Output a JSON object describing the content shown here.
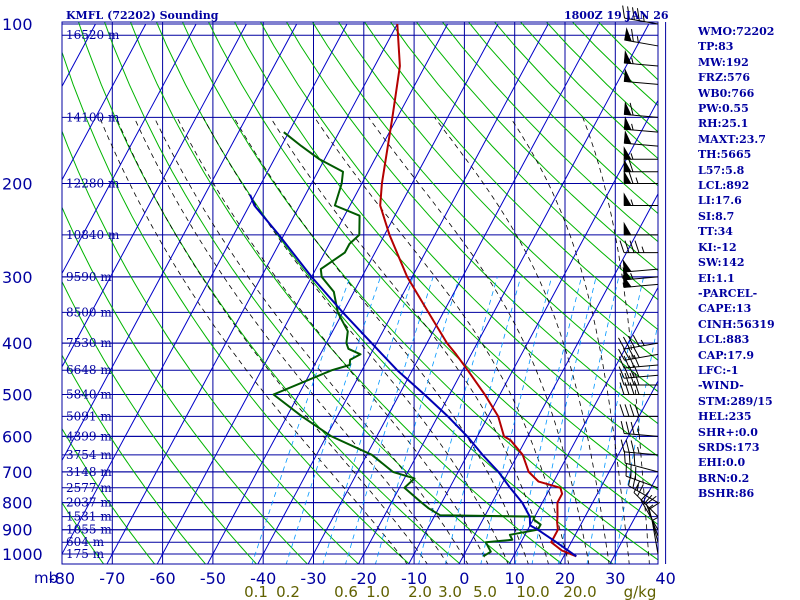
{
  "header": {
    "station": "KMFL (72202) Sounding",
    "valid_time": "1800Z 19 JAN 26"
  },
  "indices": [
    "WMO:72202",
    "TP:83",
    "MW:192",
    "FRZ:576",
    "WB0:766",
    "PW:0.55",
    "RH:25.1",
    "MAXT:23.7",
    "TH:5665",
    "L57:5.8",
    "LCL:892",
    "LI:17.6",
    "SI:8.7",
    "TT:34",
    "KI:-12",
    "SW:142",
    "EI:1.1",
    "-PARCEL-",
    "CAPE:13",
    "CINH:56319",
    "LCL:883",
    "CAP:17.9",
    "LFC:-1",
    "-WIND-",
    "STM:289/15",
    "HEL:235",
    "SHR+:0.0",
    "SRDS:173",
    "EHI:0.0",
    "BRN:0.2",
    "BSHR:86"
  ],
  "colors": {
    "frame": "#0000a0",
    "isotherm": "#0000c8",
    "dry_adiabat": "#00b400",
    "moist_adiabat": "#000000",
    "mixing_ratio": "#0096ff",
    "temperature": "#b40000",
    "dewpoint": "#005a00",
    "parcel": "#0000b4",
    "wind_barb": "#000000",
    "mixing_label": "#606000"
  },
  "chart_data": {
    "type": "skew-t",
    "pressure_axis_label": "mb",
    "pressure_levels": [
      100,
      200,
      300,
      400,
      500,
      600,
      700,
      800,
      900,
      1000
    ],
    "temperature_ticks": [
      -80,
      -70,
      -60,
      -50,
      -40,
      -30,
      -20,
      -10,
      0,
      10,
      20,
      30,
      40
    ],
    "temperature_tick_labels": [
      "-80",
      "-70",
      "-60",
      "-50",
      "-40",
      "-30",
      "-20",
      "-10",
      "0",
      "10",
      "20",
      "30",
      "40"
    ],
    "mixing_ratio_labels": [
      "0.1",
      "0.2",
      "0.6",
      "1.0",
      "2.0",
      "3.0",
      "5.0",
      "10.0",
      "20.0"
    ],
    "mixing_ratio_unit": "g/kg",
    "height_labels": [
      {
        "p": 105,
        "label": "16520 m"
      },
      {
        "p": 150,
        "label": "14100 m"
      },
      {
        "p": 200,
        "label": "12280 m"
      },
      {
        "p": 250,
        "label": "10840 m"
      },
      {
        "p": 300,
        "label": "9590 m"
      },
      {
        "p": 350,
        "label": "8500 m"
      },
      {
        "p": 400,
        "label": "7530 m"
      },
      {
        "p": 450,
        "label": "6648 m"
      },
      {
        "p": 500,
        "label": "5840 m"
      },
      {
        "p": 550,
        "label": "5091 m"
      },
      {
        "p": 600,
        "label": "4399 m"
      },
      {
        "p": 650,
        "label": "3754 m"
      },
      {
        "p": 700,
        "label": "3148 m"
      },
      {
        "p": 750,
        "label": "2577 m"
      },
      {
        "p": 800,
        "label": "2037 m"
      },
      {
        "p": 850,
        "label": "1531 m"
      },
      {
        "p": 900,
        "label": "1055 m"
      },
      {
        "p": 950,
        "label": "604 m"
      },
      {
        "p": 1000,
        "label": "175 m"
      }
    ],
    "series": [
      {
        "key": "temperature",
        "points": [
          [
            1010,
            22.5
          ],
          [
            985,
            19
          ],
          [
            950,
            16
          ],
          [
            925,
            16
          ],
          [
            900,
            16
          ],
          [
            870,
            15
          ],
          [
            850,
            14.5
          ],
          [
            800,
            13
          ],
          [
            770,
            13
          ],
          [
            750,
            12
          ],
          [
            730,
            7
          ],
          [
            700,
            4
          ],
          [
            650,
            1
          ],
          [
            610,
            -3
          ],
          [
            600,
            -4.7
          ],
          [
            550,
            -8
          ],
          [
            500,
            -13
          ],
          [
            450,
            -19
          ],
          [
            420,
            -23
          ],
          [
            400,
            -26
          ],
          [
            350,
            -33
          ],
          [
            300,
            -41
          ],
          [
            250,
            -49
          ],
          [
            220,
            -54
          ],
          [
            200,
            -56
          ],
          [
            150,
            -61
          ],
          [
            120,
            -65
          ],
          [
            100,
            -70
          ]
        ]
      },
      {
        "key": "dewpoint",
        "points": [
          [
            1010,
            4
          ],
          [
            990,
            5
          ],
          [
            970,
            4
          ],
          [
            950,
            3
          ],
          [
            940,
            8
          ],
          [
            920,
            7
          ],
          [
            900,
            12
          ],
          [
            880,
            12
          ],
          [
            860,
            10
          ],
          [
            850,
            10
          ],
          [
            845,
            -9
          ],
          [
            820,
            -12
          ],
          [
            800,
            -14
          ],
          [
            750,
            -19
          ],
          [
            720,
            -18
          ],
          [
            700,
            -23
          ],
          [
            650,
            -29
          ],
          [
            600,
            -39
          ],
          [
            550,
            -47
          ],
          [
            500,
            -55
          ],
          [
            450,
            -46
          ],
          [
            440,
            -43
          ],
          [
            430,
            -43.5
          ],
          [
            420,
            -42
          ],
          [
            410,
            -45
          ],
          [
            400,
            -46
          ],
          [
            380,
            -47
          ],
          [
            350,
            -51
          ],
          [
            320,
            -54
          ],
          [
            300,
            -58
          ],
          [
            290,
            -59
          ],
          [
            270,
            -56
          ],
          [
            260,
            -56
          ],
          [
            250,
            -55
          ],
          [
            230,
            -57
          ],
          [
            220,
            -63
          ],
          [
            200,
            -64
          ],
          [
            190,
            -65
          ],
          [
            180,
            -71
          ],
          [
            170,
            -76
          ],
          [
            160,
            -81
          ]
        ]
      },
      {
        "key": "parcel",
        "points": [
          [
            1010,
            22.5
          ],
          [
            950,
            17
          ],
          [
            900,
            12
          ],
          [
            883,
            10
          ],
          [
            850,
            9
          ],
          [
            800,
            6
          ],
          [
            750,
            2
          ],
          [
            700,
            -2
          ],
          [
            650,
            -7
          ],
          [
            600,
            -12
          ],
          [
            550,
            -18
          ],
          [
            500,
            -25
          ],
          [
            450,
            -33
          ],
          [
            400,
            -41
          ],
          [
            350,
            -50
          ],
          [
            300,
            -60
          ],
          [
            250,
            -71
          ],
          [
            220,
            -79
          ],
          [
            210,
            -81
          ]
        ]
      }
    ],
    "wind_barbs": [
      {
        "p": 100,
        "dir": 280,
        "spd": 45
      },
      {
        "p": 110,
        "dir": 280,
        "spd": 65
      },
      {
        "p": 120,
        "dir": 275,
        "spd": 55
      },
      {
        "p": 130,
        "dir": 275,
        "spd": 50
      },
      {
        "p": 150,
        "dir": 275,
        "spd": 60
      },
      {
        "p": 160,
        "dir": 275,
        "spd": 55
      },
      {
        "p": 170,
        "dir": 275,
        "spd": 50
      },
      {
        "p": 180,
        "dir": 270,
        "spd": 55
      },
      {
        "p": 190,
        "dir": 270,
        "spd": 60
      },
      {
        "p": 200,
        "dir": 270,
        "spd": 65
      },
      {
        "p": 220,
        "dir": 270,
        "spd": 55
      },
      {
        "p": 250,
        "dir": 270,
        "spd": 50
      },
      {
        "p": 270,
        "dir": 270,
        "spd": 45
      },
      {
        "p": 290,
        "dir": 265,
        "spd": 50
      },
      {
        "p": 300,
        "dir": 265,
        "spd": 55
      },
      {
        "p": 310,
        "dir": 265,
        "spd": 50
      },
      {
        "p": 400,
        "dir": 260,
        "spd": 45
      },
      {
        "p": 420,
        "dir": 260,
        "spd": 40
      },
      {
        "p": 440,
        "dir": 265,
        "spd": 40
      },
      {
        "p": 460,
        "dir": 265,
        "spd": 40
      },
      {
        "p": 480,
        "dir": 270,
        "spd": 40
      },
      {
        "p": 500,
        "dir": 270,
        "spd": 40
      },
      {
        "p": 550,
        "dir": 270,
        "spd": 40
      },
      {
        "p": 600,
        "dir": 275,
        "spd": 35
      },
      {
        "p": 650,
        "dir": 275,
        "spd": 35
      },
      {
        "p": 700,
        "dir": 285,
        "spd": 30
      },
      {
        "p": 750,
        "dir": 290,
        "spd": 30
      },
      {
        "p": 800,
        "dir": 300,
        "spd": 25
      },
      {
        "p": 850,
        "dir": 315,
        "spd": 20
      },
      {
        "p": 900,
        "dir": 330,
        "spd": 20
      },
      {
        "p": 925,
        "dir": 340,
        "spd": 15
      },
      {
        "p": 950,
        "dir": 345,
        "spd": 10
      },
      {
        "p": 1000,
        "dir": 350,
        "spd": 5
      }
    ]
  }
}
